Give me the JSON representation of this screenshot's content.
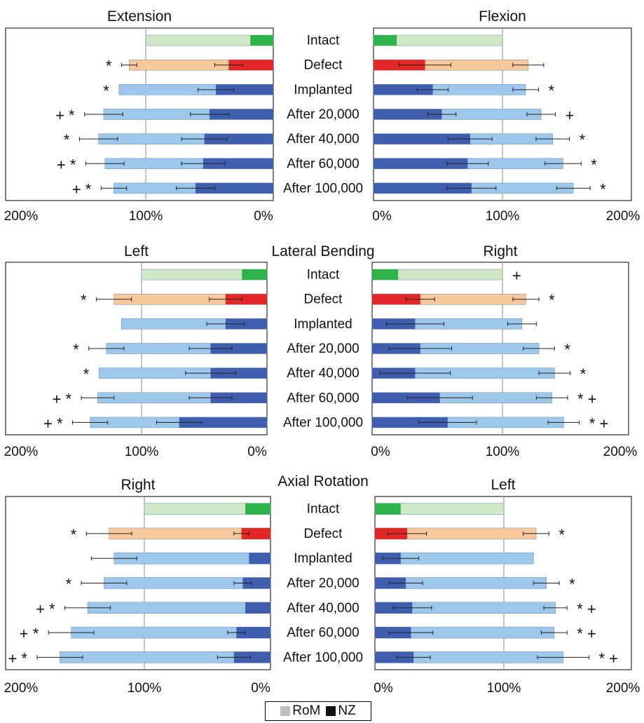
{
  "legend": {
    "rom_label": "RoM",
    "nz_label": "NZ",
    "rom_swatch_color": "#bdbdbd",
    "nz_swatch_color": "#111111"
  },
  "colors": {
    "intact_rom": "#cfe8c6",
    "intact_nz": "#2db34a",
    "defect_rom": "#f9c89a",
    "defect_nz": "#e32726",
    "implant_rom": "#9dc8ec",
    "implant_nz": "#3f5fae"
  },
  "chart_data": [
    {
      "type": "bar",
      "panel": "top",
      "group_title": "",
      "categories": [
        "Intact",
        "Defect",
        "Implanted",
        "After  20,000",
        "After  40,000",
        "After  60,000",
        "After  100,000"
      ],
      "left": {
        "title": "Extension",
        "tick_labels": [
          "200%",
          "100%",
          "0%"
        ],
        "xlim": [
          0,
          200
        ],
        "rom": [
          100,
          113,
          121,
          133,
          137,
          132,
          125
        ],
        "rom_err": [
          0,
          6,
          0,
          15,
          15,
          15,
          10
        ],
        "nz": [
          18,
          35,
          45,
          50,
          54,
          55,
          61
        ],
        "nz_err": [
          0,
          11,
          14,
          15,
          18,
          17,
          15
        ],
        "markers": [
          "",
          "*",
          "*",
          "+ *",
          "*",
          "+ *",
          "+ *"
        ]
      },
      "right": {
        "title": "Flexion",
        "tick_labels": [
          "0%",
          "100%",
          "200%"
        ],
        "xlim": [
          0,
          200
        ],
        "rom": [
          100,
          120,
          118,
          130,
          139,
          147,
          155
        ],
        "rom_err": [
          0,
          12,
          10,
          11,
          13,
          14,
          13
        ],
        "nz": [
          18,
          40,
          46,
          53,
          75,
          73,
          76
        ],
        "nz_err": [
          0,
          20,
          12,
          11,
          17,
          16,
          19
        ],
        "markers": [
          "",
          "",
          "*",
          "+",
          "*",
          "*",
          "*"
        ]
      }
    },
    {
      "type": "bar",
      "panel": "middle",
      "group_title": "Lateral  Bending",
      "categories": [
        "Intact",
        "Defect",
        "Implanted",
        "After  20,000",
        "After  40,000",
        "After  60,000",
        "After  100,000"
      ],
      "left": {
        "title": "Left",
        "tick_labels": [
          "200%",
          "100%",
          "0%"
        ],
        "xlim": [
          0,
          200
        ],
        "rom": [
          100,
          122,
          116,
          128,
          134,
          135,
          141
        ],
        "rom_err": [
          0,
          14,
          0,
          14,
          0,
          13,
          14
        ],
        "nz": [
          20,
          33,
          33,
          45,
          45,
          45,
          70
        ],
        "nz_err": [
          0,
          13,
          15,
          17,
          20,
          17,
          18
        ],
        "markers": [
          "",
          "*",
          "",
          "*",
          "*",
          "+ *",
          "+ *"
        ]
      },
      "right": {
        "title": "Right",
        "tick_labels": [
          "0%",
          "100%",
          "200%"
        ],
        "xlim": [
          0,
          200
        ],
        "rom": [
          100,
          118,
          115,
          128,
          140,
          138,
          147
        ],
        "rom_err": [
          0,
          10,
          11,
          12,
          12,
          12,
          12
        ],
        "nz": [
          20,
          37,
          33,
          37,
          33,
          52,
          58
        ],
        "nz_err": [
          0,
          11,
          22,
          24,
          27,
          25,
          22
        ],
        "markers": [
          "+",
          "*",
          "",
          "*",
          "*",
          "* +",
          "* +"
        ]
      }
    },
    {
      "type": "bar",
      "panel": "bottom",
      "group_title": "Axial  Rotation",
      "categories": [
        "Intact",
        "Defect",
        "Implanted",
        "After  20,000",
        "After  40,000",
        "After  60,000",
        "After  100,000"
      ],
      "left": {
        "title": "Right",
        "tick_labels": [
          "200%",
          "100%",
          "0%"
        ],
        "xlim": [
          0,
          200
        ],
        "rom": [
          100,
          128,
          124,
          132,
          145,
          158,
          167
        ],
        "rom_err": [
          0,
          18,
          18,
          18,
          18,
          18,
          18
        ],
        "nz": [
          20,
          23,
          17,
          22,
          20,
          27,
          29
        ],
        "nz_err": [
          0,
          6,
          0,
          7,
          0,
          7,
          13
        ],
        "markers": [
          "",
          "*",
          "",
          "*",
          "+ *",
          "+ *",
          "+ *"
        ]
      },
      "right": {
        "title": "Left",
        "tick_labels": [
          "0%",
          "100%",
          "200%"
        ],
        "xlim": [
          0,
          200
        ],
        "rom": [
          100,
          125,
          123,
          133,
          140,
          139,
          146
        ],
        "rom_err": [
          0,
          10,
          0,
          10,
          9,
          10,
          20
        ],
        "nz": [
          20,
          25,
          20,
          24,
          29,
          28,
          30
        ],
        "nz_err": [
          0,
          15,
          14,
          13,
          15,
          17,
          13
        ],
        "markers": [
          "",
          "*",
          "",
          "*",
          "* +",
          "* +",
          "* +"
        ]
      }
    }
  ]
}
